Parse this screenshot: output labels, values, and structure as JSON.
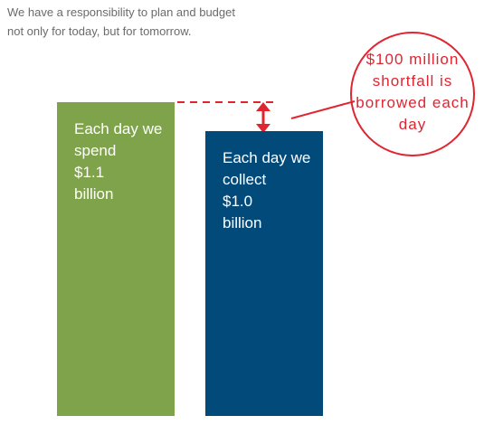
{
  "chart_data": {
    "type": "bar",
    "subtitle": "We have a responsibility to plan and budget not only for today, but for tomorrow.",
    "categories": [
      "Each day we spend",
      "Each day we collect"
    ],
    "values": [
      1.1,
      1.0
    ],
    "value_labels": [
      "$1.1 billion",
      "$1.0 billion"
    ],
    "colors": [
      "#7fa34a",
      "#024a7a"
    ],
    "annotation": "$100 million shortfall is borrowed each day",
    "annotation_color": "#e02531"
  }
}
